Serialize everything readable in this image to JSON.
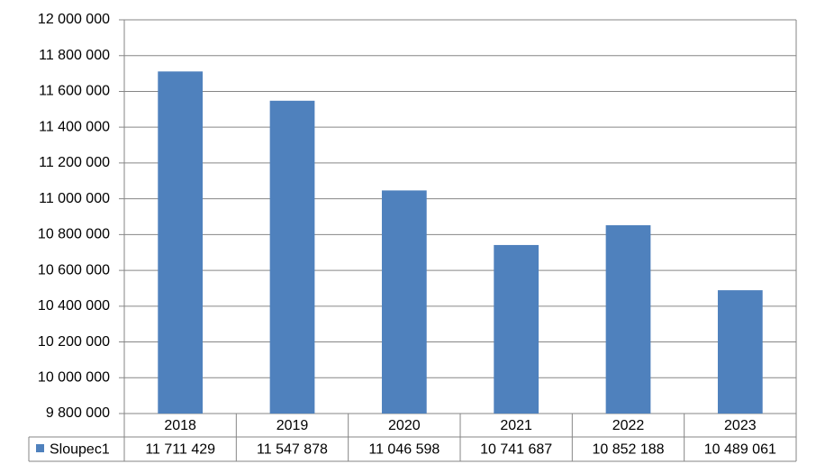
{
  "chart_data": {
    "type": "bar",
    "categories": [
      "2018",
      "2019",
      "2020",
      "2021",
      "2022",
      "2023"
    ],
    "series": [
      {
        "name": "Sloupec1",
        "color": "#4f81bd",
        "values": [
          11711429,
          11547878,
          11046598,
          10741687,
          10852188,
          10489061
        ],
        "value_labels": [
          "11 711 429",
          "11 547 878",
          "11 046 598",
          "10 741 687",
          "10 852 188",
          "10 489 061"
        ]
      }
    ],
    "ylim": [
      9800000,
      12000000
    ],
    "yticks": [
      {
        "value": 9800000,
        "label": "9 800 000"
      },
      {
        "value": 10000000,
        "label": "10 000 000"
      },
      {
        "value": 10200000,
        "label": "10 200 000"
      },
      {
        "value": 10400000,
        "label": "10 400 000"
      },
      {
        "value": 10600000,
        "label": "10 600 000"
      },
      {
        "value": 10800000,
        "label": "10 800 000"
      },
      {
        "value": 11000000,
        "label": "11 000 000"
      },
      {
        "value": 11200000,
        "label": "11 200 000"
      },
      {
        "value": 11400000,
        "label": "11 400 000"
      },
      {
        "value": 11600000,
        "label": "11 600 000"
      },
      {
        "value": 11800000,
        "label": "11 800 000"
      },
      {
        "value": 12000000,
        "label": "12 000 000"
      }
    ],
    "grid": true
  }
}
